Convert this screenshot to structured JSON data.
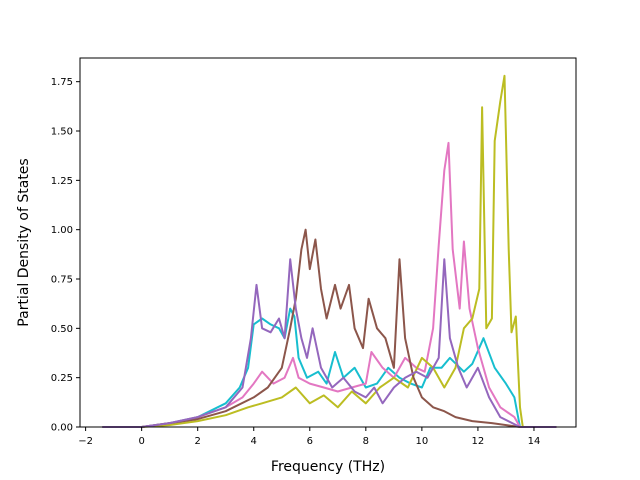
{
  "chart_data": {
    "type": "line",
    "title": "",
    "xlabel": "Frequency (THz)",
    "ylabel": "Partial Density of States",
    "xlim": [
      -2.2,
      15.5
    ],
    "ylim": [
      0,
      1.87
    ],
    "xticks": [
      -2,
      0,
      2,
      4,
      6,
      8,
      10,
      12,
      14
    ],
    "xtick_labels": [
      "−2",
      "0",
      "2",
      "4",
      "6",
      "8",
      "10",
      "12",
      "14"
    ],
    "yticks": [
      0,
      0.25,
      0.5,
      0.75,
      1.0,
      1.25,
      1.5,
      1.75
    ],
    "ytick_labels": [
      "0.00",
      "0.25",
      "0.50",
      "0.75",
      "1.00",
      "1.25",
      "1.50",
      "1.75"
    ],
    "grid": false,
    "series": [
      {
        "color": "#17becf",
        "points": [
          [
            -1.4,
            0
          ],
          [
            0,
            0
          ],
          [
            1,
            0.02
          ],
          [
            2,
            0.05
          ],
          [
            3,
            0.12
          ],
          [
            3.5,
            0.2
          ],
          [
            3.8,
            0.3
          ],
          [
            4.0,
            0.52
          ],
          [
            4.3,
            0.55
          ],
          [
            4.6,
            0.52
          ],
          [
            4.9,
            0.5
          ],
          [
            5.1,
            0.45
          ],
          [
            5.3,
            0.6
          ],
          [
            5.45,
            0.56
          ],
          [
            5.6,
            0.35
          ],
          [
            5.9,
            0.25
          ],
          [
            6.3,
            0.28
          ],
          [
            6.6,
            0.22
          ],
          [
            6.9,
            0.38
          ],
          [
            7.2,
            0.25
          ],
          [
            7.6,
            0.3
          ],
          [
            8.0,
            0.2
          ],
          [
            8.4,
            0.22
          ],
          [
            8.8,
            0.3
          ],
          [
            9.2,
            0.25
          ],
          [
            9.6,
            0.22
          ],
          [
            10.0,
            0.2
          ],
          [
            10.3,
            0.3
          ],
          [
            10.7,
            0.3
          ],
          [
            11.0,
            0.35
          ],
          [
            11.5,
            0.28
          ],
          [
            11.8,
            0.32
          ],
          [
            12.2,
            0.45
          ],
          [
            12.6,
            0.3
          ],
          [
            13.0,
            0.22
          ],
          [
            13.3,
            0.15
          ],
          [
            13.5,
            0
          ],
          [
            14.8,
            0
          ]
        ]
      },
      {
        "color": "#e377c2",
        "points": [
          [
            -1.4,
            0
          ],
          [
            0,
            0
          ],
          [
            1,
            0.02
          ],
          [
            2,
            0.05
          ],
          [
            3,
            0.1
          ],
          [
            3.6,
            0.15
          ],
          [
            4.0,
            0.22
          ],
          [
            4.3,
            0.28
          ],
          [
            4.7,
            0.22
          ],
          [
            5.1,
            0.25
          ],
          [
            5.4,
            0.35
          ],
          [
            5.6,
            0.25
          ],
          [
            6.0,
            0.22
          ],
          [
            6.5,
            0.2
          ],
          [
            7.0,
            0.18
          ],
          [
            7.5,
            0.2
          ],
          [
            8.0,
            0.22
          ],
          [
            8.2,
            0.38
          ],
          [
            8.6,
            0.3
          ],
          [
            9.0,
            0.25
          ],
          [
            9.4,
            0.35
          ],
          [
            9.8,
            0.3
          ],
          [
            10.1,
            0.28
          ],
          [
            10.4,
            0.5
          ],
          [
            10.6,
            0.92
          ],
          [
            10.8,
            1.3
          ],
          [
            10.95,
            1.44
          ],
          [
            11.1,
            0.9
          ],
          [
            11.35,
            0.6
          ],
          [
            11.5,
            0.94
          ],
          [
            11.7,
            0.6
          ],
          [
            12.0,
            0.4
          ],
          [
            12.4,
            0.2
          ],
          [
            12.8,
            0.1
          ],
          [
            13.3,
            0.05
          ],
          [
            13.5,
            0
          ],
          [
            14.8,
            0
          ]
        ]
      },
      {
        "color": "#bcbd22",
        "points": [
          [
            -1.4,
            0
          ],
          [
            0,
            0
          ],
          [
            1,
            0.01
          ],
          [
            2,
            0.03
          ],
          [
            3,
            0.06
          ],
          [
            3.8,
            0.1
          ],
          [
            4.3,
            0.12
          ],
          [
            5.0,
            0.15
          ],
          [
            5.5,
            0.2
          ],
          [
            6.0,
            0.12
          ],
          [
            6.5,
            0.16
          ],
          [
            7.0,
            0.1
          ],
          [
            7.5,
            0.18
          ],
          [
            8.0,
            0.12
          ],
          [
            8.5,
            0.2
          ],
          [
            9.0,
            0.25
          ],
          [
            9.5,
            0.2
          ],
          [
            10.0,
            0.35
          ],
          [
            10.4,
            0.3
          ],
          [
            10.8,
            0.2
          ],
          [
            11.2,
            0.3
          ],
          [
            11.5,
            0.5
          ],
          [
            11.8,
            0.55
          ],
          [
            12.05,
            0.7
          ],
          [
            12.15,
            1.62
          ],
          [
            12.3,
            0.5
          ],
          [
            12.5,
            0.55
          ],
          [
            12.6,
            1.45
          ],
          [
            12.8,
            1.65
          ],
          [
            12.95,
            1.78
          ],
          [
            13.1,
            0.9
          ],
          [
            13.2,
            0.48
          ],
          [
            13.35,
            0.56
          ],
          [
            13.5,
            0.1
          ],
          [
            13.6,
            0
          ],
          [
            14.8,
            0
          ]
        ]
      },
      {
        "color": "#8c564b",
        "points": [
          [
            -1.4,
            0
          ],
          [
            0,
            0
          ],
          [
            1,
            0.02
          ],
          [
            2,
            0.04
          ],
          [
            3,
            0.08
          ],
          [
            4,
            0.15
          ],
          [
            4.5,
            0.2
          ],
          [
            5.0,
            0.3
          ],
          [
            5.3,
            0.5
          ],
          [
            5.5,
            0.65
          ],
          [
            5.7,
            0.9
          ],
          [
            5.85,
            1.0
          ],
          [
            6.0,
            0.8
          ],
          [
            6.2,
            0.95
          ],
          [
            6.4,
            0.7
          ],
          [
            6.6,
            0.55
          ],
          [
            6.9,
            0.72
          ],
          [
            7.1,
            0.6
          ],
          [
            7.4,
            0.72
          ],
          [
            7.6,
            0.5
          ],
          [
            7.9,
            0.4
          ],
          [
            8.1,
            0.65
          ],
          [
            8.4,
            0.5
          ],
          [
            8.7,
            0.45
          ],
          [
            9.0,
            0.3
          ],
          [
            9.2,
            0.85
          ],
          [
            9.4,
            0.45
          ],
          [
            9.7,
            0.25
          ],
          [
            10.0,
            0.15
          ],
          [
            10.4,
            0.1
          ],
          [
            10.8,
            0.08
          ],
          [
            11.2,
            0.05
          ],
          [
            11.8,
            0.03
          ],
          [
            12.5,
            0.02
          ],
          [
            13.5,
            0
          ],
          [
            14.8,
            0
          ]
        ]
      },
      {
        "color": "#9467bd",
        "points": [
          [
            -1.4,
            0
          ],
          [
            0,
            0
          ],
          [
            1,
            0.02
          ],
          [
            2,
            0.05
          ],
          [
            3,
            0.1
          ],
          [
            3.6,
            0.2
          ],
          [
            3.9,
            0.45
          ],
          [
            4.1,
            0.72
          ],
          [
            4.3,
            0.5
          ],
          [
            4.6,
            0.48
          ],
          [
            4.9,
            0.55
          ],
          [
            5.1,
            0.45
          ],
          [
            5.3,
            0.85
          ],
          [
            5.5,
            0.6
          ],
          [
            5.7,
            0.45
          ],
          [
            5.9,
            0.35
          ],
          [
            6.1,
            0.5
          ],
          [
            6.4,
            0.3
          ],
          [
            6.8,
            0.2
          ],
          [
            7.2,
            0.25
          ],
          [
            7.6,
            0.18
          ],
          [
            8.0,
            0.15
          ],
          [
            8.3,
            0.2
          ],
          [
            8.6,
            0.12
          ],
          [
            9.0,
            0.2
          ],
          [
            9.4,
            0.25
          ],
          [
            9.8,
            0.28
          ],
          [
            10.2,
            0.25
          ],
          [
            10.6,
            0.35
          ],
          [
            10.8,
            0.85
          ],
          [
            11.0,
            0.45
          ],
          [
            11.3,
            0.3
          ],
          [
            11.6,
            0.2
          ],
          [
            12.0,
            0.3
          ],
          [
            12.4,
            0.15
          ],
          [
            12.8,
            0.05
          ],
          [
            13.5,
            0
          ],
          [
            14.8,
            0
          ]
        ]
      }
    ]
  }
}
